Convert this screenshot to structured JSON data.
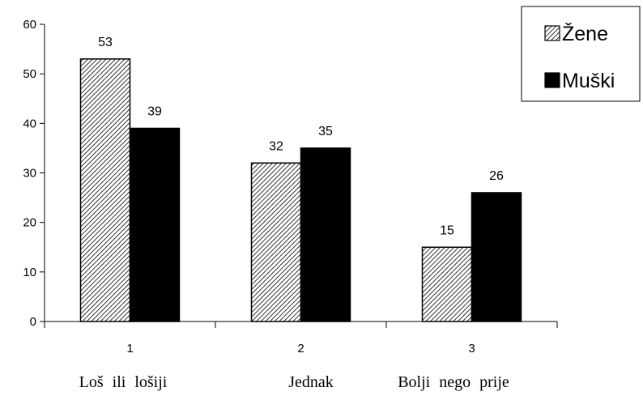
{
  "chart_data": {
    "type": "bar",
    "categories": [
      "1",
      "2",
      "3"
    ],
    "category_descriptions": [
      "Loš ili lošiji",
      "Jednak",
      "Bolji nego prije"
    ],
    "series": [
      {
        "name": "Žene",
        "values": [
          53,
          32,
          15
        ],
        "pattern": "diagonal-hatch",
        "color": "#ffffff"
      },
      {
        "name": "Muški",
        "values": [
          39,
          35,
          26
        ],
        "pattern": "solid",
        "color": "#000000"
      }
    ],
    "ylim": [
      0,
      60
    ],
    "yticks": [
      0,
      10,
      20,
      30,
      40,
      50,
      60
    ],
    "grid": false,
    "legend_position": "top-right"
  }
}
